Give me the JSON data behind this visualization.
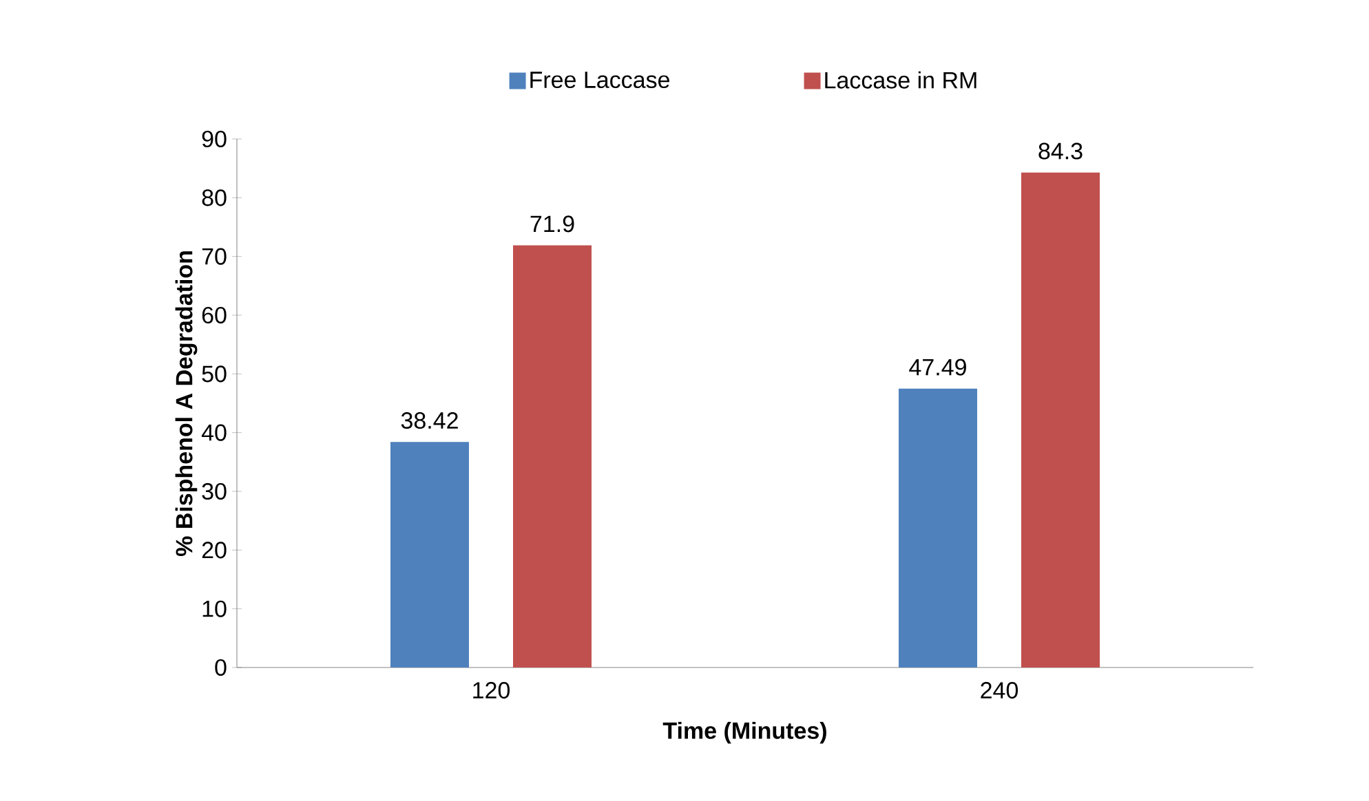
{
  "chart_data": {
    "type": "bar",
    "xlabel": "Time (Minutes)",
    "ylabel": "% Bisphenol A Degradation",
    "categories": [
      "120",
      "240"
    ],
    "series": [
      {
        "name": "Free Laccase",
        "color": "#4f81bd",
        "values": [
          38.42,
          47.49
        ]
      },
      {
        "name": "Laccase in RM",
        "color": "#c0504d",
        "values": [
          71.9,
          84.3
        ]
      }
    ],
    "ylim": [
      0,
      90
    ],
    "yticks": [
      0,
      10,
      20,
      30,
      40,
      50,
      60,
      70,
      80,
      90
    ],
    "grid": false,
    "legend": "top",
    "data_labels": true
  }
}
